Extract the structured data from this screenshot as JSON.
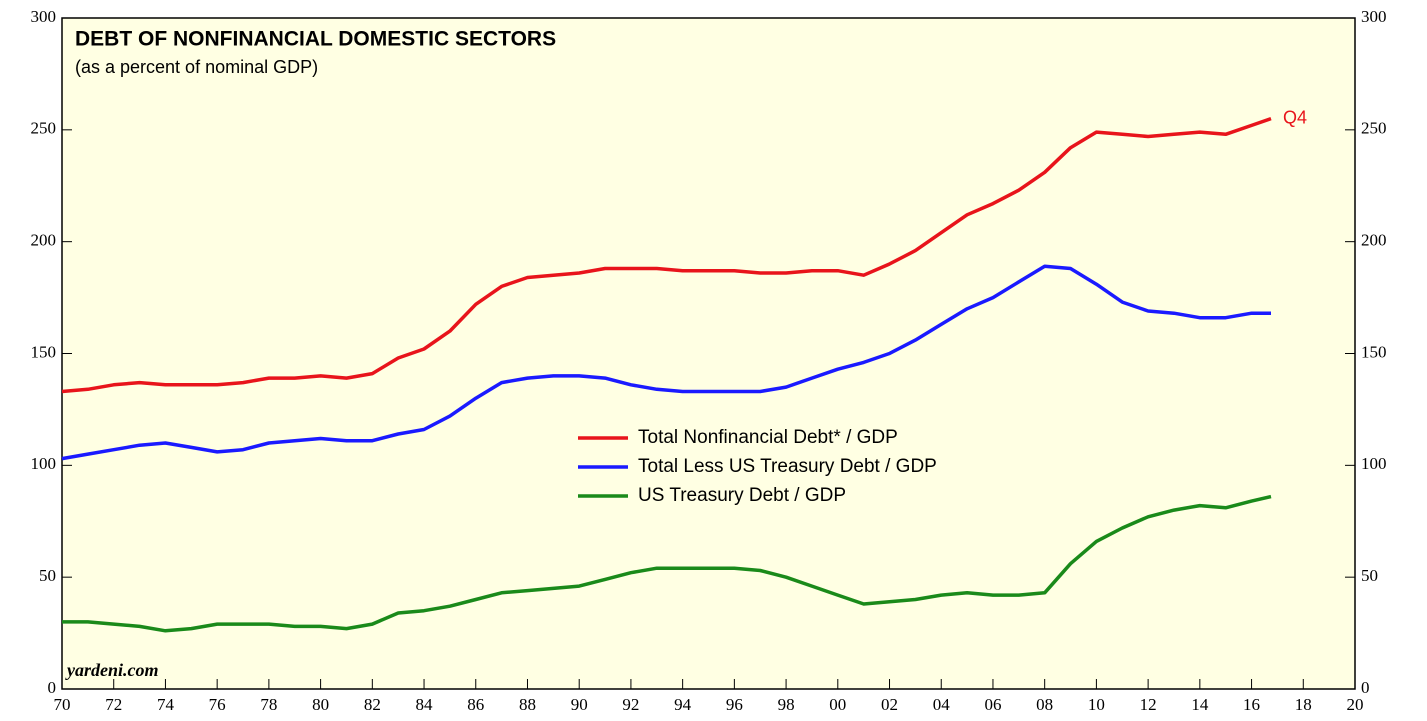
{
  "chart_data": {
    "type": "line",
    "title": "DEBT OF NONFINANCIAL DOMESTIC SECTORS",
    "subtitle": "(as a percent of nominal GDP)",
    "annotation": "Q4",
    "source": "yardeni.com",
    "x": [
      1970,
      1971,
      1972,
      1973,
      1974,
      1975,
      1976,
      1977,
      1978,
      1979,
      1980,
      1981,
      1982,
      1983,
      1984,
      1985,
      1986,
      1987,
      1988,
      1989,
      1990,
      1991,
      1992,
      1993,
      1994,
      1995,
      1996,
      1997,
      1998,
      1999,
      2000,
      2001,
      2002,
      2003,
      2004,
      2005,
      2006,
      2007,
      2008,
      2009,
      2010,
      2011,
      2012,
      2013,
      2014,
      2015,
      2016,
      2016.75
    ],
    "series": [
      {
        "name": "Total Nonfinancial Debt* / GDP",
        "color": "#e8141b",
        "values": [
          133,
          134,
          136,
          137,
          136,
          136,
          136,
          137,
          139,
          139,
          140,
          139,
          141,
          148,
          152,
          160,
          172,
          180,
          184,
          185,
          186,
          188,
          188,
          188,
          187,
          187,
          187,
          186,
          186,
          187,
          187,
          185,
          190,
          196,
          204,
          212,
          217,
          223,
          231,
          242,
          249,
          248,
          247,
          248,
          249,
          248,
          252,
          255
        ]
      },
      {
        "name": "Total Less US Treasury Debt / GDP",
        "color": "#1a1aff",
        "values": [
          103,
          105,
          107,
          109,
          110,
          108,
          106,
          107,
          110,
          111,
          112,
          111,
          111,
          114,
          116,
          122,
          130,
          137,
          139,
          140,
          140,
          139,
          136,
          134,
          133,
          133,
          133,
          133,
          135,
          139,
          143,
          146,
          150,
          156,
          163,
          170,
          175,
          182,
          189,
          188,
          181,
          173,
          169,
          168,
          166,
          166,
          168,
          168
        ]
      },
      {
        "name": "US Treasury Debt / GDP",
        "color": "#1a8a1a",
        "values": [
          30,
          30,
          29,
          28,
          26,
          27,
          29,
          29,
          29,
          28,
          28,
          27,
          29,
          34,
          35,
          37,
          40,
          43,
          44,
          45,
          46,
          49,
          52,
          54,
          54,
          54,
          54,
          53,
          50,
          46,
          42,
          38,
          39,
          40,
          42,
          43,
          42,
          42,
          43,
          56,
          66,
          72,
          77,
          80,
          82,
          81,
          84,
          86
        ]
      }
    ],
    "xlim": [
      1970,
      2020
    ],
    "xticks": [
      {
        "value": 1970,
        "label": "70"
      },
      {
        "value": 1972,
        "label": "72"
      },
      {
        "value": 1974,
        "label": "74"
      },
      {
        "value": 1976,
        "label": "76"
      },
      {
        "value": 1978,
        "label": "78"
      },
      {
        "value": 1980,
        "label": "80"
      },
      {
        "value": 1982,
        "label": "82"
      },
      {
        "value": 1984,
        "label": "84"
      },
      {
        "value": 1986,
        "label": "86"
      },
      {
        "value": 1988,
        "label": "88"
      },
      {
        "value": 1990,
        "label": "90"
      },
      {
        "value": 1992,
        "label": "92"
      },
      {
        "value": 1994,
        "label": "94"
      },
      {
        "value": 1996,
        "label": "96"
      },
      {
        "value": 1998,
        "label": "98"
      },
      {
        "value": 2000,
        "label": "00"
      },
      {
        "value": 2002,
        "label": "02"
      },
      {
        "value": 2004,
        "label": "04"
      },
      {
        "value": 2006,
        "label": "06"
      },
      {
        "value": 2008,
        "label": "08"
      },
      {
        "value": 2010,
        "label": "10"
      },
      {
        "value": 2012,
        "label": "12"
      },
      {
        "value": 2014,
        "label": "14"
      },
      {
        "value": 2016,
        "label": "16"
      },
      {
        "value": 2018,
        "label": "18"
      },
      {
        "value": 2020,
        "label": "20"
      }
    ],
    "ylim": [
      0,
      300
    ],
    "yticks": [
      0,
      50,
      100,
      150,
      200,
      250,
      300
    ],
    "y2lim": [
      0,
      300
    ],
    "y2ticks": [
      0,
      50,
      100,
      150,
      200,
      250,
      300
    ]
  }
}
